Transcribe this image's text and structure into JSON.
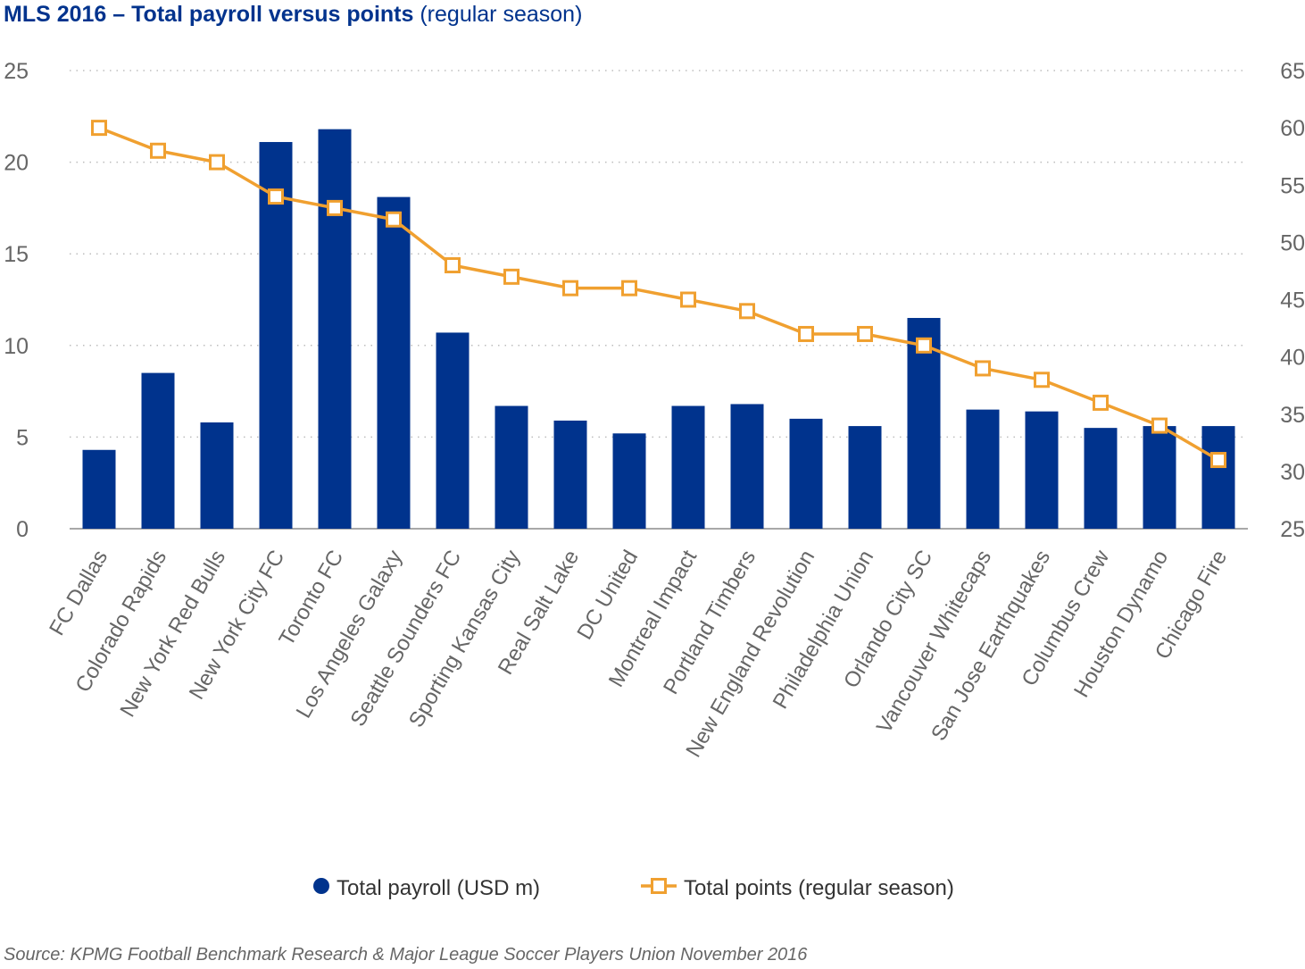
{
  "chart_data": {
    "type": "bar",
    "title": "MLS 2016 – Total payroll versus points",
    "title_bold": "MLS 2016 – Total payroll versus points",
    "title_suffix": "(regular season)",
    "source": "Source: KPMG Football Benchmark Research & Major League Soccer Players Union November 2016",
    "categories": [
      "FC Dallas",
      "Colorado Rapids",
      "New York Red Bulls",
      "New York City FC",
      "Toronto FC",
      "Los Angeles Galaxy",
      "Seattle Sounders FC",
      "Sporting Kansas City",
      "Real Salt Lake",
      "DC United",
      "Montreal Impact",
      "Portland Timbers",
      "New England Revolution",
      "Philadelphia Union",
      "Orlando City SC",
      "Vancouver Whitecaps",
      "San Jose Earthquakes",
      "Columbus Crew",
      "Houston Dynamo",
      "Chicago Fire"
    ],
    "series": [
      {
        "name": "Total payroll (USD m)",
        "type": "bar",
        "axis": "left",
        "color": "#00338d",
        "values": [
          4.3,
          8.5,
          5.8,
          21.1,
          21.8,
          18.1,
          10.7,
          6.7,
          5.9,
          5.2,
          6.7,
          6.8,
          6.0,
          5.6,
          11.5,
          6.5,
          6.4,
          5.5,
          5.6,
          5.6
        ]
      },
      {
        "name": "Total points (regular season)",
        "type": "line",
        "axis": "right",
        "color": "#f0a030",
        "values": [
          60,
          58,
          57,
          54,
          53,
          52,
          48,
          47,
          46,
          46,
          45,
          44,
          42,
          42,
          41,
          39,
          38,
          36,
          34,
          31
        ]
      }
    ],
    "ylim_left": [
      0,
      25
    ],
    "yticks_left": [
      "0",
      "5",
      "10",
      "15",
      "20",
      "25"
    ],
    "ylim_right": [
      25,
      65
    ],
    "yticks_right": [
      "25",
      "30",
      "35",
      "40",
      "45",
      "50",
      "55",
      "60",
      "65"
    ],
    "grid": "dotted",
    "legend": "bottom"
  }
}
